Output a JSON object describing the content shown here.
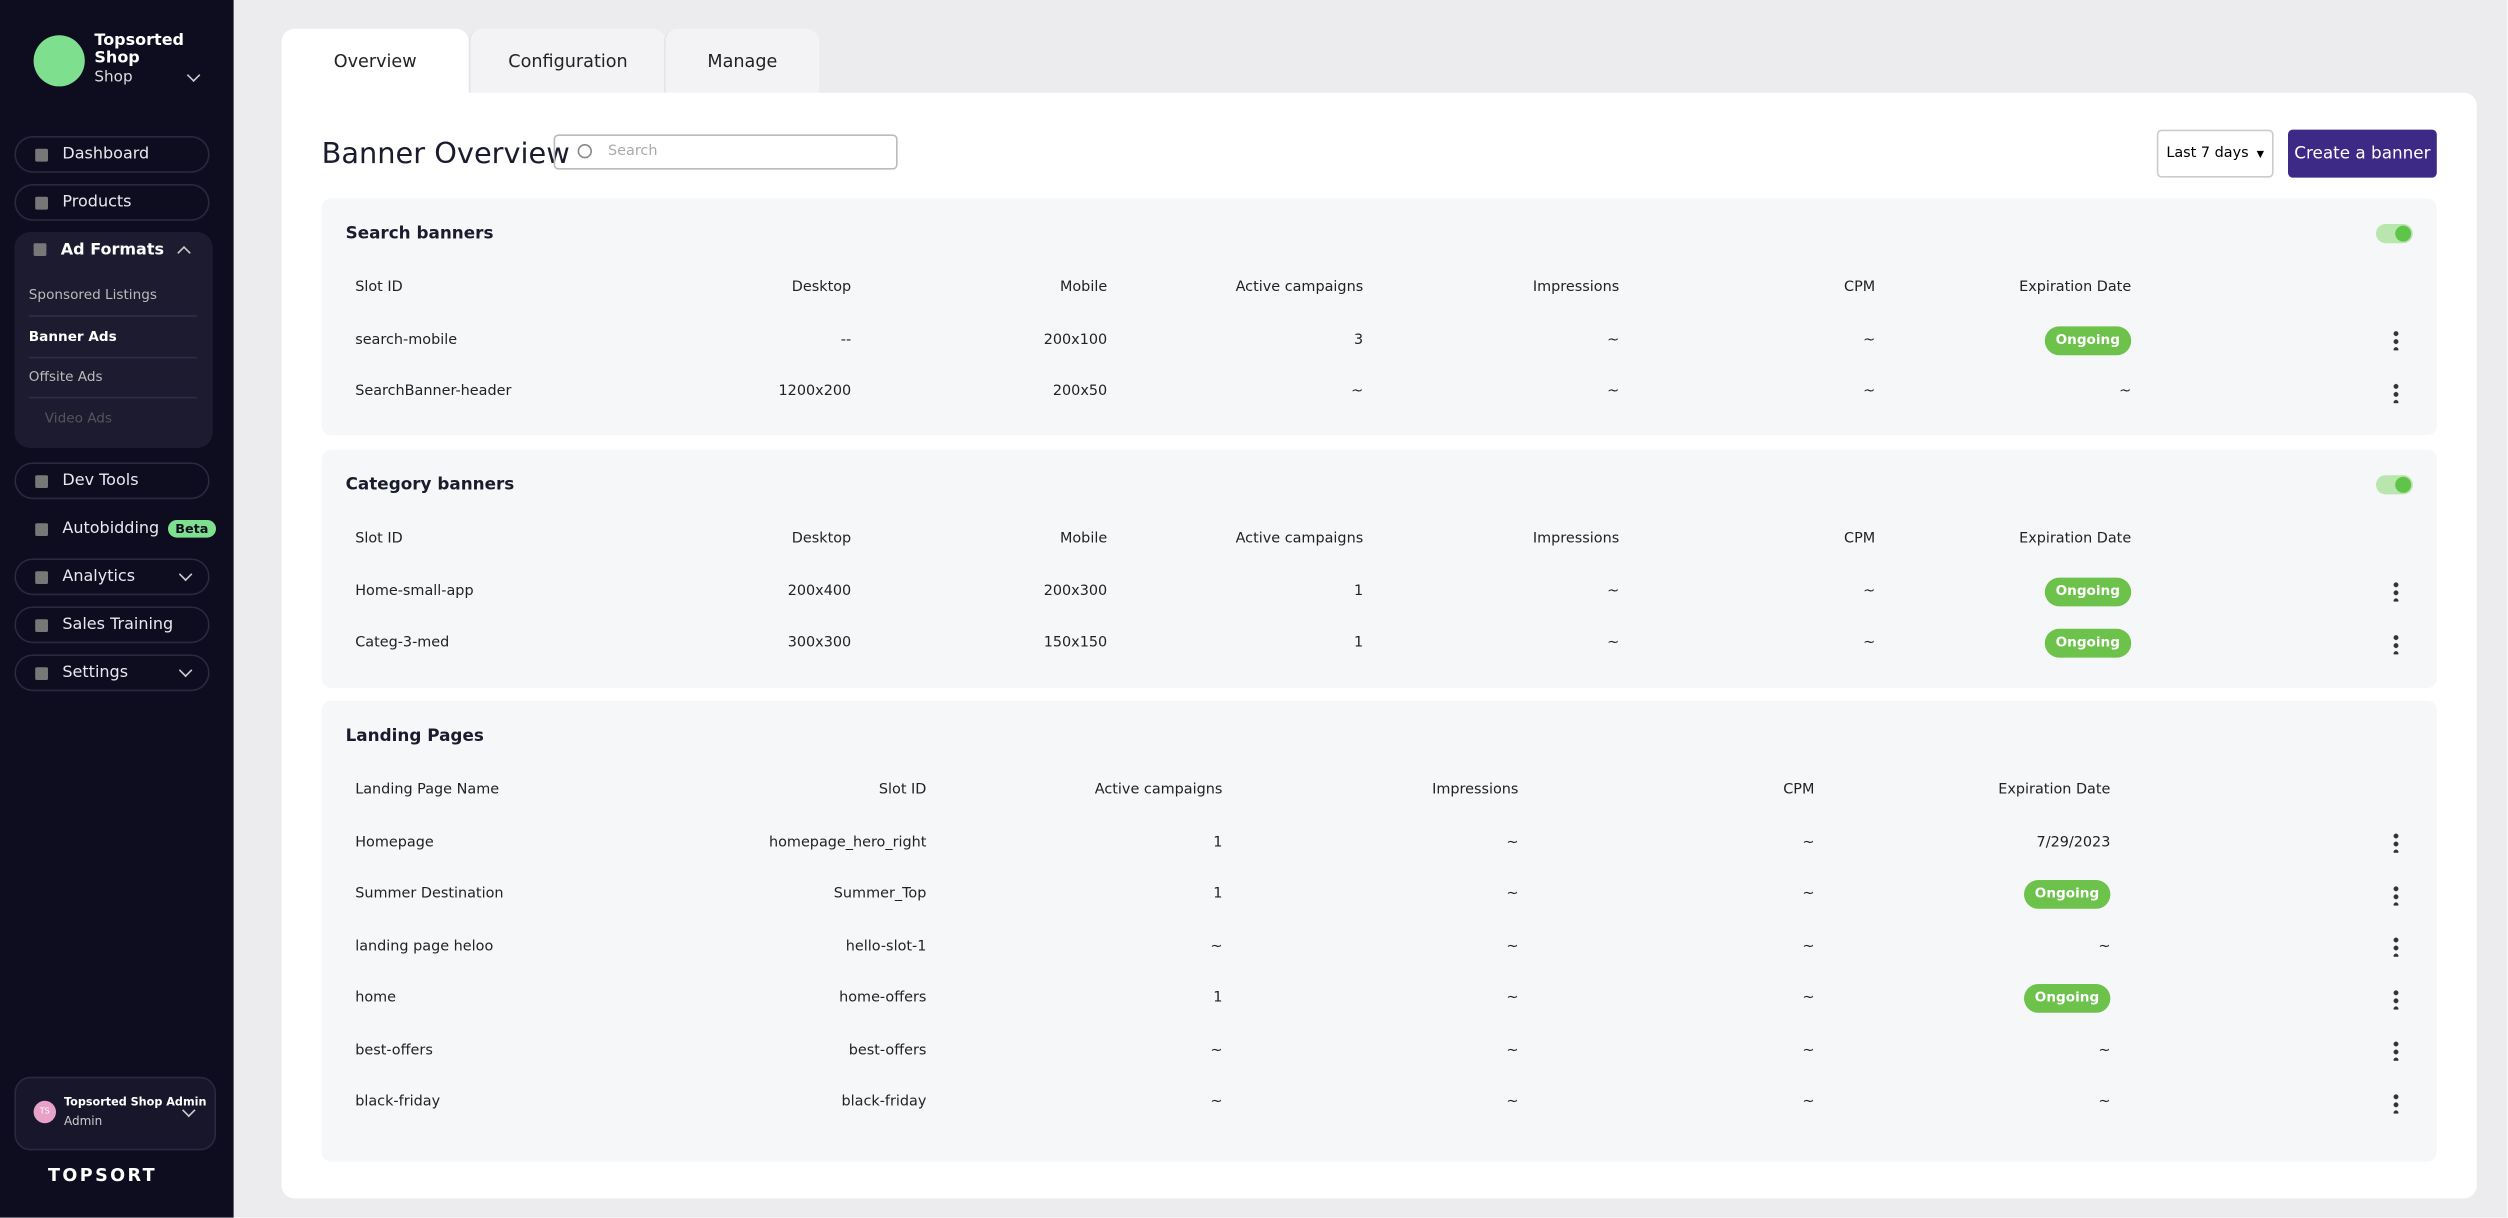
{
  "sidebar": {
    "shop_name": "Topsorted Shop",
    "shop_type": "Shop",
    "nav_top": [
      "Dashboard",
      "Products"
    ],
    "ad_formats": {
      "label": "Ad Formats",
      "items": [
        "Sponsored Listings",
        "Banner Ads",
        "Offsite Ads",
        "Video Ads"
      ]
    },
    "nav_bottom": [
      "Dev Tools",
      "Autobidding",
      "Analytics",
      "Sales Training",
      "Settings"
    ],
    "badge": "Beta",
    "user": {
      "initials": "TS",
      "name": "Topsorted Shop Admin",
      "role": "Admin"
    },
    "brand": "TOPSORT"
  },
  "tabs": [
    "Overview",
    "Configuration",
    "Manage"
  ],
  "header": {
    "title": "Banner Overview",
    "search_placeholder": "Search",
    "date_range": "Last 7 days",
    "create_button": "Create a banner"
  },
  "sections": [
    {
      "title": "Search banners",
      "columns": [
        "Slot ID",
        "Desktop",
        "Mobile",
        "Active campaigns",
        "Impressions",
        "CPM",
        "Expiration Date"
      ],
      "rows": [
        [
          "search-mobile",
          "--",
          "200x100",
          "3",
          "~",
          "~",
          {
            "status": "Ongoing"
          }
        ],
        [
          "SearchBanner-header",
          "1200x200",
          "200x50",
          "~",
          "~",
          "~",
          "~"
        ]
      ]
    },
    {
      "title": "Category banners",
      "columns": [
        "Slot ID",
        "Desktop",
        "Mobile",
        "Active campaigns",
        "Impressions",
        "CPM",
        "Expiration Date"
      ],
      "rows": [
        [
          "Home-small-app",
          "200x400",
          "200x300",
          "1",
          "~",
          "~",
          {
            "status": "Ongoing"
          }
        ],
        [
          "Categ-3-med",
          "300x300",
          "150x150",
          "1",
          "~",
          "~",
          {
            "status": "Ongoing"
          }
        ]
      ]
    },
    {
      "title": "Landing Pages",
      "columns": [
        "Landing Page Name",
        "Slot ID",
        "Active campaigns",
        "Impressions",
        "CPM",
        "Expiration Date"
      ],
      "rows": [
        [
          "Homepage",
          "homepage_hero_right",
          "1",
          "~",
          "~",
          "7/29/2023"
        ],
        [
          "Summer Destination",
          "Summer_Top",
          "1",
          "~",
          "~",
          {
            "status": "Ongoing"
          }
        ],
        [
          "landing page heloo",
          "hello-slot-1",
          "~",
          "~",
          "~",
          "~"
        ],
        [
          "home",
          "home-offers",
          "1",
          "~",
          "~",
          {
            "status": "Ongoing"
          }
        ],
        [
          "best-offers",
          "best-offers",
          "~",
          "~",
          "~",
          "~"
        ],
        [
          "black-friday",
          "black-friday",
          "~",
          "~",
          "~",
          "~"
        ]
      ]
    }
  ]
}
